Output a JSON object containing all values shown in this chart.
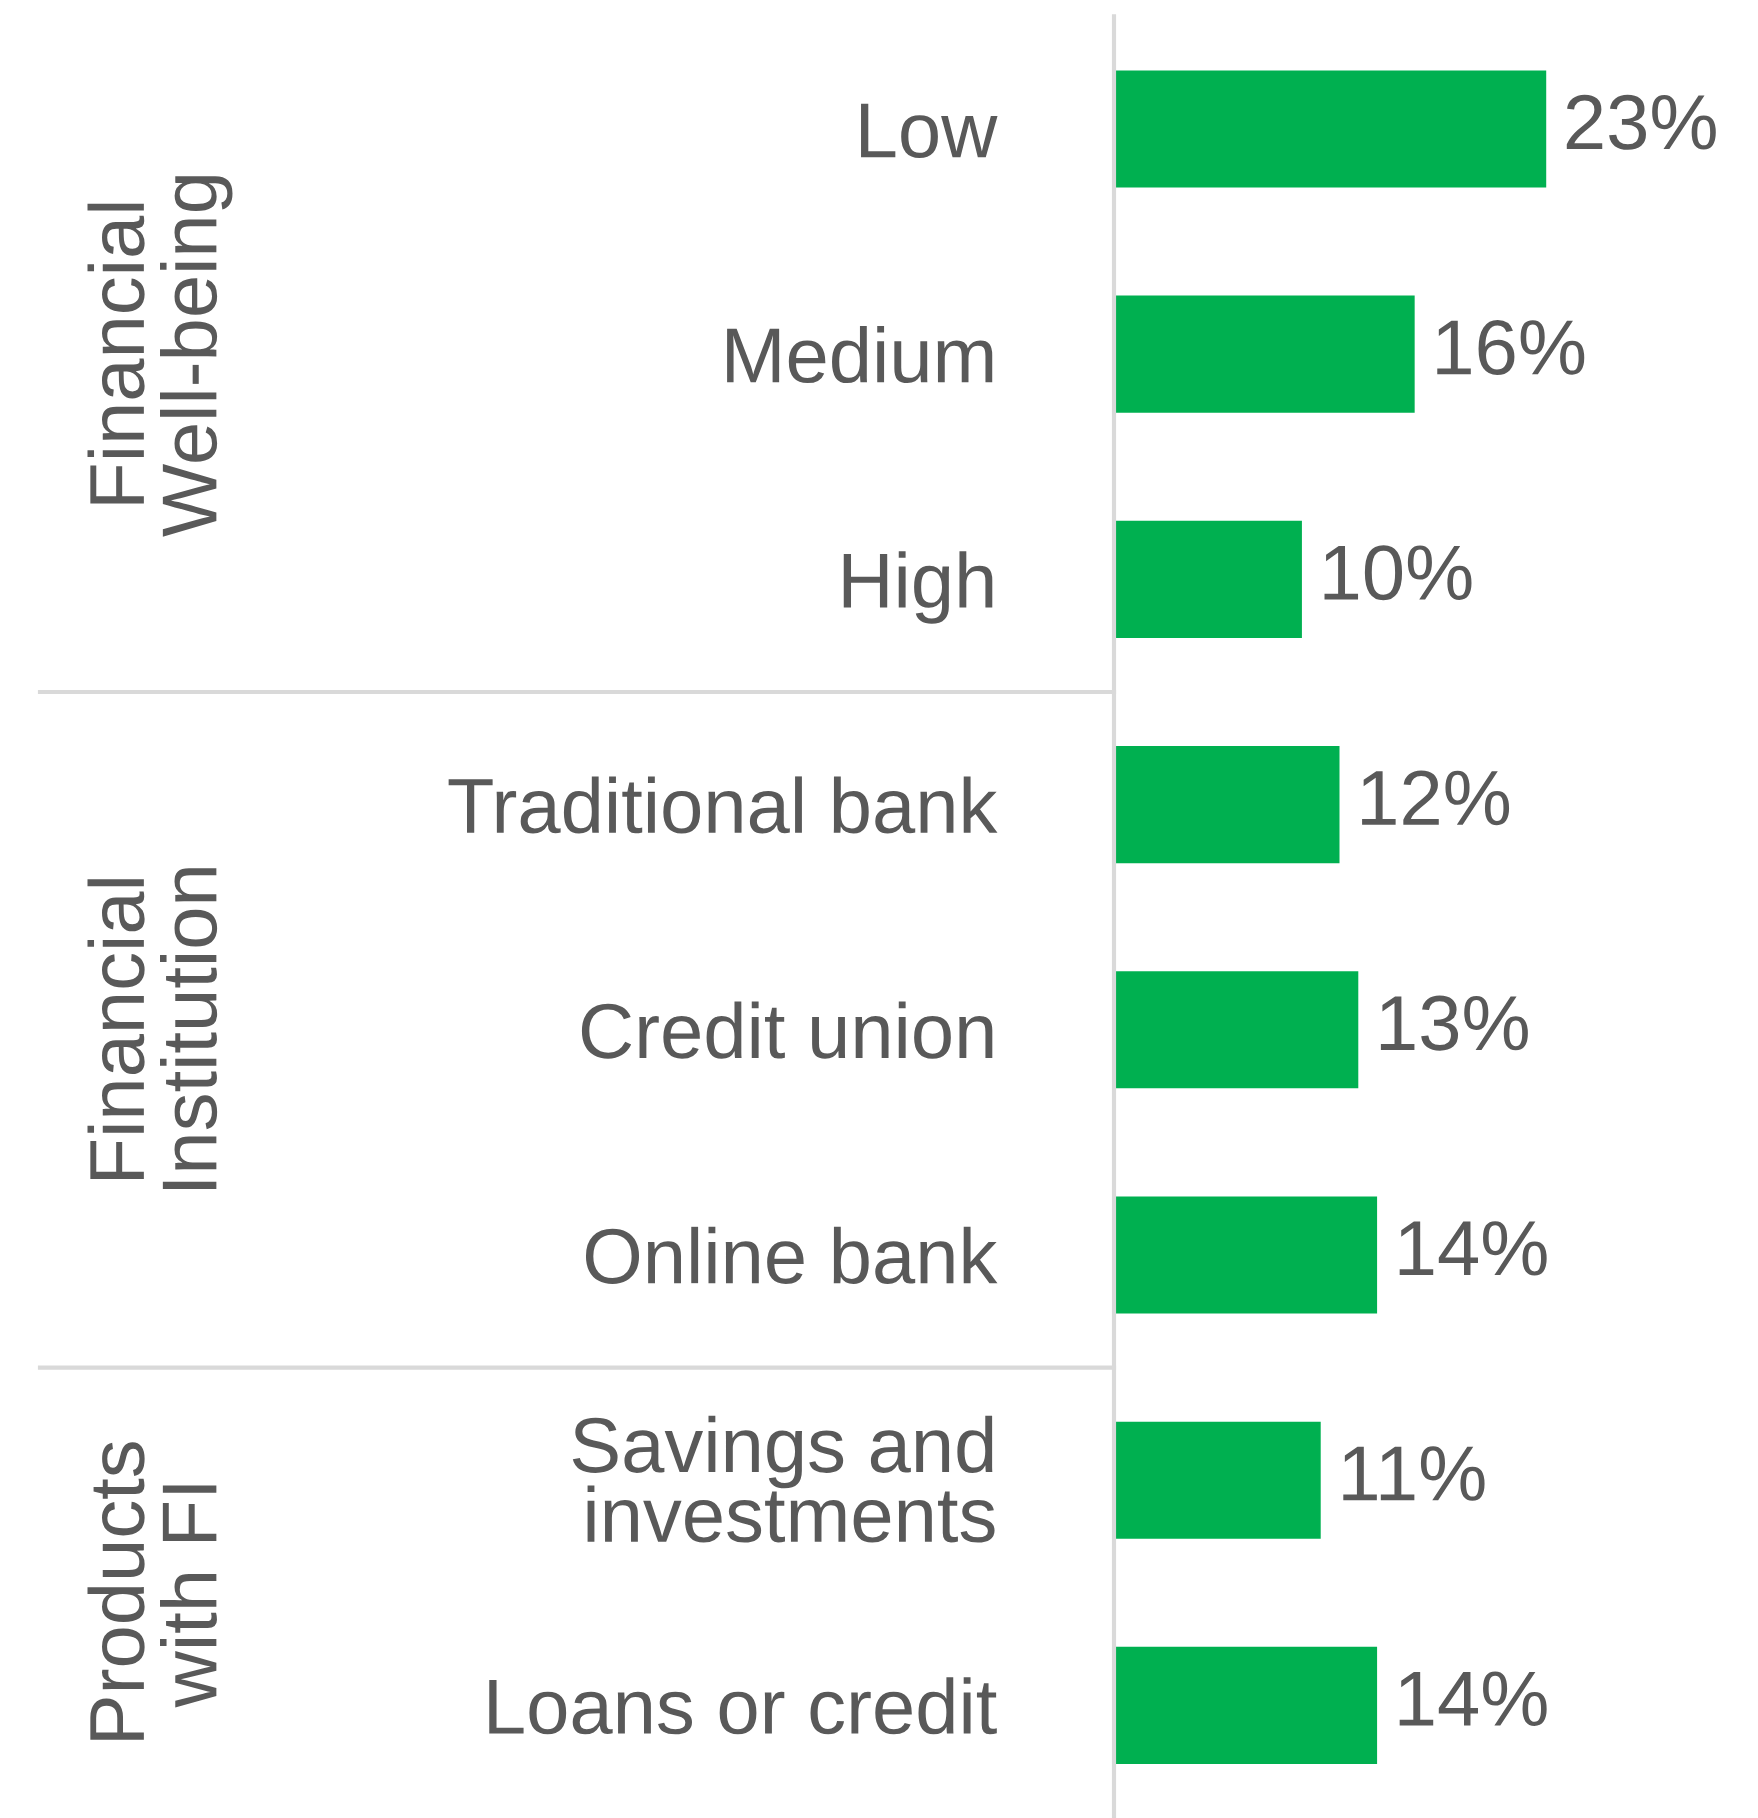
{
  "chart_data": {
    "type": "bar",
    "orientation": "horizontal",
    "categories": [
      "Low",
      "Medium",
      "High",
      "Traditional bank",
      "Credit union",
      "Online bank",
      "Savings and\ninvestments",
      "Loans or credit"
    ],
    "values": [
      23,
      16,
      10,
      12,
      13,
      14,
      11,
      14
    ],
    "value_labels": [
      "23%",
      "16%",
      "10%",
      "12%",
      "13%",
      "14%",
      "11%",
      "14%"
    ],
    "color": "#00b050",
    "annotations": [
      "Financial\nWell-being",
      "Financial\nInstitution",
      "Products\nwith FI"
    ]
  }
}
